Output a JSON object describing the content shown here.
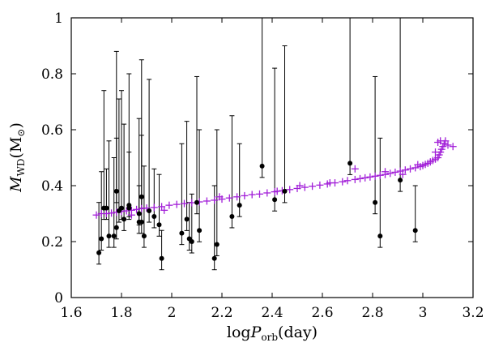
{
  "chart_data": {
    "type": "scatter",
    "title": "",
    "xlabel_parts": {
      "prefix": "log",
      "var": "P",
      "sub": "orb",
      "suffix": "(day)"
    },
    "ylabel_parts": {
      "var": "M",
      "sub": "WD",
      "suffix": "(M",
      "unit_sub": "⊙",
      "close": ")"
    },
    "xlim": [
      1.6,
      3.2
    ],
    "ylim": [
      0,
      1
    ],
    "xticks": [
      "1.6",
      "1.8",
      "2",
      "2.2",
      "2.4",
      "2.6",
      "2.8",
      "3",
      "3.2"
    ],
    "yticks": [
      "0",
      "0.2",
      "0.4",
      "0.6",
      "0.8",
      "1"
    ],
    "grid": false,
    "legend": "none",
    "series": [
      {
        "marker": "filled-circle",
        "color": "#000000",
        "error_bars": "upper",
        "points": [
          {
            "x": 1.71,
            "y": 0.16,
            "upper": 0.34
          },
          {
            "x": 1.72,
            "y": 0.21,
            "upper": 0.45
          },
          {
            "x": 1.73,
            "y": 0.32,
            "upper": 0.74
          },
          {
            "x": 1.74,
            "y": 0.32,
            "upper": 0.46
          },
          {
            "x": 1.75,
            "y": 0.22,
            "upper": 0.56
          },
          {
            "x": 1.77,
            "y": 0.22,
            "upper": 0.5
          },
          {
            "x": 1.78,
            "y": 0.38,
            "upper": 0.88
          },
          {
            "x": 1.78,
            "y": 0.25,
            "upper": 0.57
          },
          {
            "x": 1.79,
            "y": 0.31,
            "upper": 0.71
          },
          {
            "x": 1.8,
            "y": 0.32,
            "upper": 0.74
          },
          {
            "x": 1.81,
            "y": 0.28,
            "upper": 0.62
          },
          {
            "x": 1.83,
            "y": 0.33,
            "upper": 0.8
          },
          {
            "x": 1.83,
            "y": 0.32,
            "upper": 0.52
          },
          {
            "x": 1.87,
            "y": 0.27,
            "upper": 0.64
          },
          {
            "x": 1.87,
            "y": 0.3,
            "upper": 0.4
          },
          {
            "x": 1.88,
            "y": 0.36,
            "upper": 0.85
          },
          {
            "x": 1.88,
            "y": 0.27,
            "upper": 0.58
          },
          {
            "x": 1.89,
            "y": 0.22,
            "upper": 0.47
          },
          {
            "x": 1.91,
            "y": 0.31,
            "upper": 0.78
          },
          {
            "x": 1.93,
            "y": 0.29,
            "upper": 0.46
          },
          {
            "x": 1.95,
            "y": 0.26,
            "upper": 0.44
          },
          {
            "x": 1.96,
            "y": 0.14,
            "upper": 0.24
          },
          {
            "x": 2.04,
            "y": 0.23,
            "upper": 0.55
          },
          {
            "x": 2.06,
            "y": 0.28,
            "upper": 0.63
          },
          {
            "x": 2.07,
            "y": 0.21,
            "upper": 0.34
          },
          {
            "x": 2.08,
            "y": 0.2,
            "upper": 0.37
          },
          {
            "x": 2.1,
            "y": 0.34,
            "upper": 0.79
          },
          {
            "x": 2.11,
            "y": 0.24,
            "upper": 0.6
          },
          {
            "x": 2.17,
            "y": 0.14,
            "upper": 0.4
          },
          {
            "x": 2.18,
            "y": 0.19,
            "upper": 0.6
          },
          {
            "x": 2.24,
            "y": 0.29,
            "upper": 0.65
          },
          {
            "x": 2.27,
            "y": 0.33,
            "upper": 0.55
          },
          {
            "x": 2.36,
            "y": 0.47,
            "upper": 1.0
          },
          {
            "x": 2.41,
            "y": 0.35,
            "upper": 0.82
          },
          {
            "x": 2.45,
            "y": 0.38,
            "upper": 0.9
          },
          {
            "x": 2.71,
            "y": 0.48,
            "upper": 1.0
          },
          {
            "x": 2.81,
            "y": 0.34,
            "upper": 0.79
          },
          {
            "x": 2.83,
            "y": 0.22,
            "upper": 0.57
          },
          {
            "x": 2.91,
            "y": 0.42,
            "upper": 1.0
          },
          {
            "x": 2.97,
            "y": 0.24,
            "upper": 0.4
          }
        ]
      },
      {
        "marker": "plus",
        "color": "#a21fd8",
        "points": [
          [
            1.7,
            0.295
          ],
          [
            1.72,
            0.3
          ],
          [
            1.74,
            0.3
          ],
          [
            1.76,
            0.302
          ],
          [
            1.78,
            0.305
          ],
          [
            1.8,
            0.308
          ],
          [
            1.82,
            0.31
          ],
          [
            1.84,
            0.312
          ],
          [
            1.86,
            0.315
          ],
          [
            1.88,
            0.318
          ],
          [
            1.9,
            0.32
          ],
          [
            1.93,
            0.322
          ],
          [
            1.96,
            0.325
          ],
          [
            1.99,
            0.33
          ],
          [
            2.02,
            0.333
          ],
          [
            2.05,
            0.336
          ],
          [
            2.08,
            0.339
          ],
          [
            2.11,
            0.342
          ],
          [
            2.14,
            0.345
          ],
          [
            2.17,
            0.348
          ],
          [
            2.2,
            0.352
          ],
          [
            2.23,
            0.356
          ],
          [
            2.26,
            0.36
          ],
          [
            2.29,
            0.364
          ],
          [
            2.32,
            0.368
          ],
          [
            2.35,
            0.37
          ],
          [
            2.38,
            0.374
          ],
          [
            2.41,
            0.378
          ],
          [
            2.44,
            0.382
          ],
          [
            2.47,
            0.386
          ],
          [
            2.5,
            0.39
          ],
          [
            2.53,
            0.394
          ],
          [
            2.56,
            0.398
          ],
          [
            2.59,
            0.402
          ],
          [
            2.62,
            0.406
          ],
          [
            2.65,
            0.41
          ],
          [
            2.68,
            0.414
          ],
          [
            2.7,
            0.418
          ],
          [
            2.73,
            0.422
          ],
          [
            2.75,
            0.425
          ],
          [
            2.77,
            0.428
          ],
          [
            2.79,
            0.431
          ],
          [
            2.81,
            0.434
          ],
          [
            2.83,
            0.437
          ],
          [
            2.85,
            0.44
          ],
          [
            2.87,
            0.444
          ],
          [
            2.89,
            0.448
          ],
          [
            2.91,
            0.452
          ],
          [
            2.93,
            0.456
          ],
          [
            2.95,
            0.46
          ],
          [
            2.97,
            0.464
          ],
          [
            2.99,
            0.468
          ],
          [
            3.0,
            0.472
          ],
          [
            3.01,
            0.476
          ],
          [
            3.02,
            0.48
          ],
          [
            3.03,
            0.485
          ],
          [
            3.04,
            0.49
          ],
          [
            3.05,
            0.495
          ],
          [
            3.06,
            0.5
          ],
          [
            3.065,
            0.51
          ],
          [
            3.07,
            0.52
          ],
          [
            3.075,
            0.53
          ],
          [
            3.08,
            0.54
          ],
          [
            3.085,
            0.55
          ],
          [
            3.09,
            0.56
          ],
          [
            3.07,
            0.56
          ],
          [
            3.06,
            0.555
          ],
          [
            3.1,
            0.545
          ],
          [
            3.12,
            0.54
          ],
          [
            3.05,
            0.52
          ],
          [
            2.98,
            0.475
          ],
          [
            2.92,
            0.44
          ],
          [
            2.85,
            0.45
          ],
          [
            2.73,
            0.46
          ],
          [
            2.63,
            0.41
          ],
          [
            2.42,
            0.38
          ],
          [
            2.19,
            0.36
          ],
          [
            1.84,
            0.295
          ],
          [
            1.97,
            0.312
          ],
          [
            2.51,
            0.4
          ]
        ]
      }
    ]
  }
}
